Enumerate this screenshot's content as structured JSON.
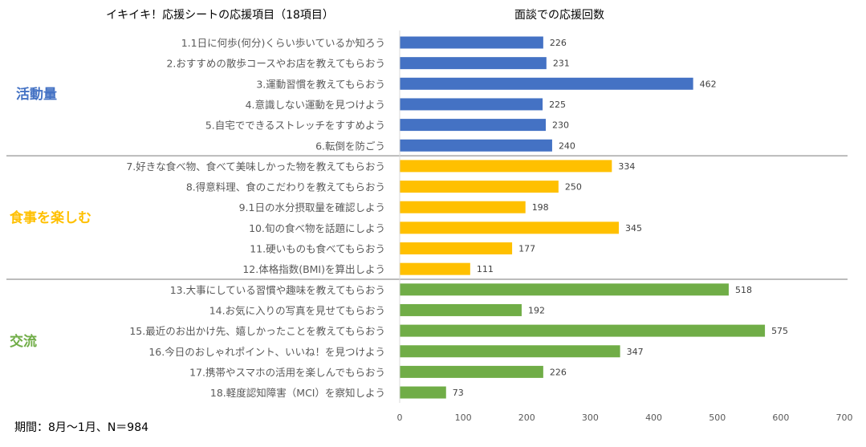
{
  "chart_data": {
    "type": "bar",
    "orientation": "horizontal",
    "title_left": "イキイキ！応援シートの応援項目（18項目）",
    "title": "面談での応援回数",
    "footnote": "期間：8月～1月、N＝984",
    "xlim": [
      0,
      700
    ],
    "xticks": [
      0,
      100,
      200,
      300,
      400,
      500,
      600,
      700
    ],
    "grid": false,
    "groups": [
      {
        "name": "活動量",
        "color": "#4472C4",
        "items": [
          {
            "label": "1.1日に何歩(何分)くらい歩いているか知ろう",
            "value": 226
          },
          {
            "label": "2.おすすめの散歩コースやお店を教えてもらおう",
            "value": 231
          },
          {
            "label": "3.運動習慣を教えてもらおう",
            "value": 462
          },
          {
            "label": "4.意識しない運動を見つけよう",
            "value": 225
          },
          {
            "label": "5.自宅でできるストレッチをすすめよう",
            "value": 230
          },
          {
            "label": "6.転倒を防ごう",
            "value": 240
          }
        ]
      },
      {
        "name": "食事を楽しむ",
        "color": "#FFC000",
        "items": [
          {
            "label": "7.好きな食べ物、食べて美味しかった物を教えてもらおう",
            "value": 334
          },
          {
            "label": "8.得意料理、食のこだわりを教えてもらおう",
            "value": 250
          },
          {
            "label": "9.1日の水分摂取量を確認しよう",
            "value": 198
          },
          {
            "label": "10.旬の食べ物を話題にしよう",
            "value": 345
          },
          {
            "label": "11.硬いものも食べてもらおう",
            "value": 177
          },
          {
            "label": "12.体格指数(BMI)を算出しよう",
            "value": 111
          }
        ]
      },
      {
        "name": "交流",
        "color": "#70AD47",
        "items": [
          {
            "label": "13.大事にしている習慣や趣味を教えてもらおう",
            "value": 518
          },
          {
            "label": "14.お気に入りの写真を見せてもらおう",
            "value": 192
          },
          {
            "label": "15.最近のお出かけ先、嬉しかったことを教えてもらおう",
            "value": 575
          },
          {
            "label": "16.今日のおしゃれポイント、いいね！を見つけよう",
            "value": 347
          },
          {
            "label": "17.携帯やスマホの活用を楽しんでもらおう",
            "value": 226
          },
          {
            "label": "18.軽度認知障害（MCI）を察知しよう",
            "value": 73
          }
        ]
      }
    ]
  }
}
